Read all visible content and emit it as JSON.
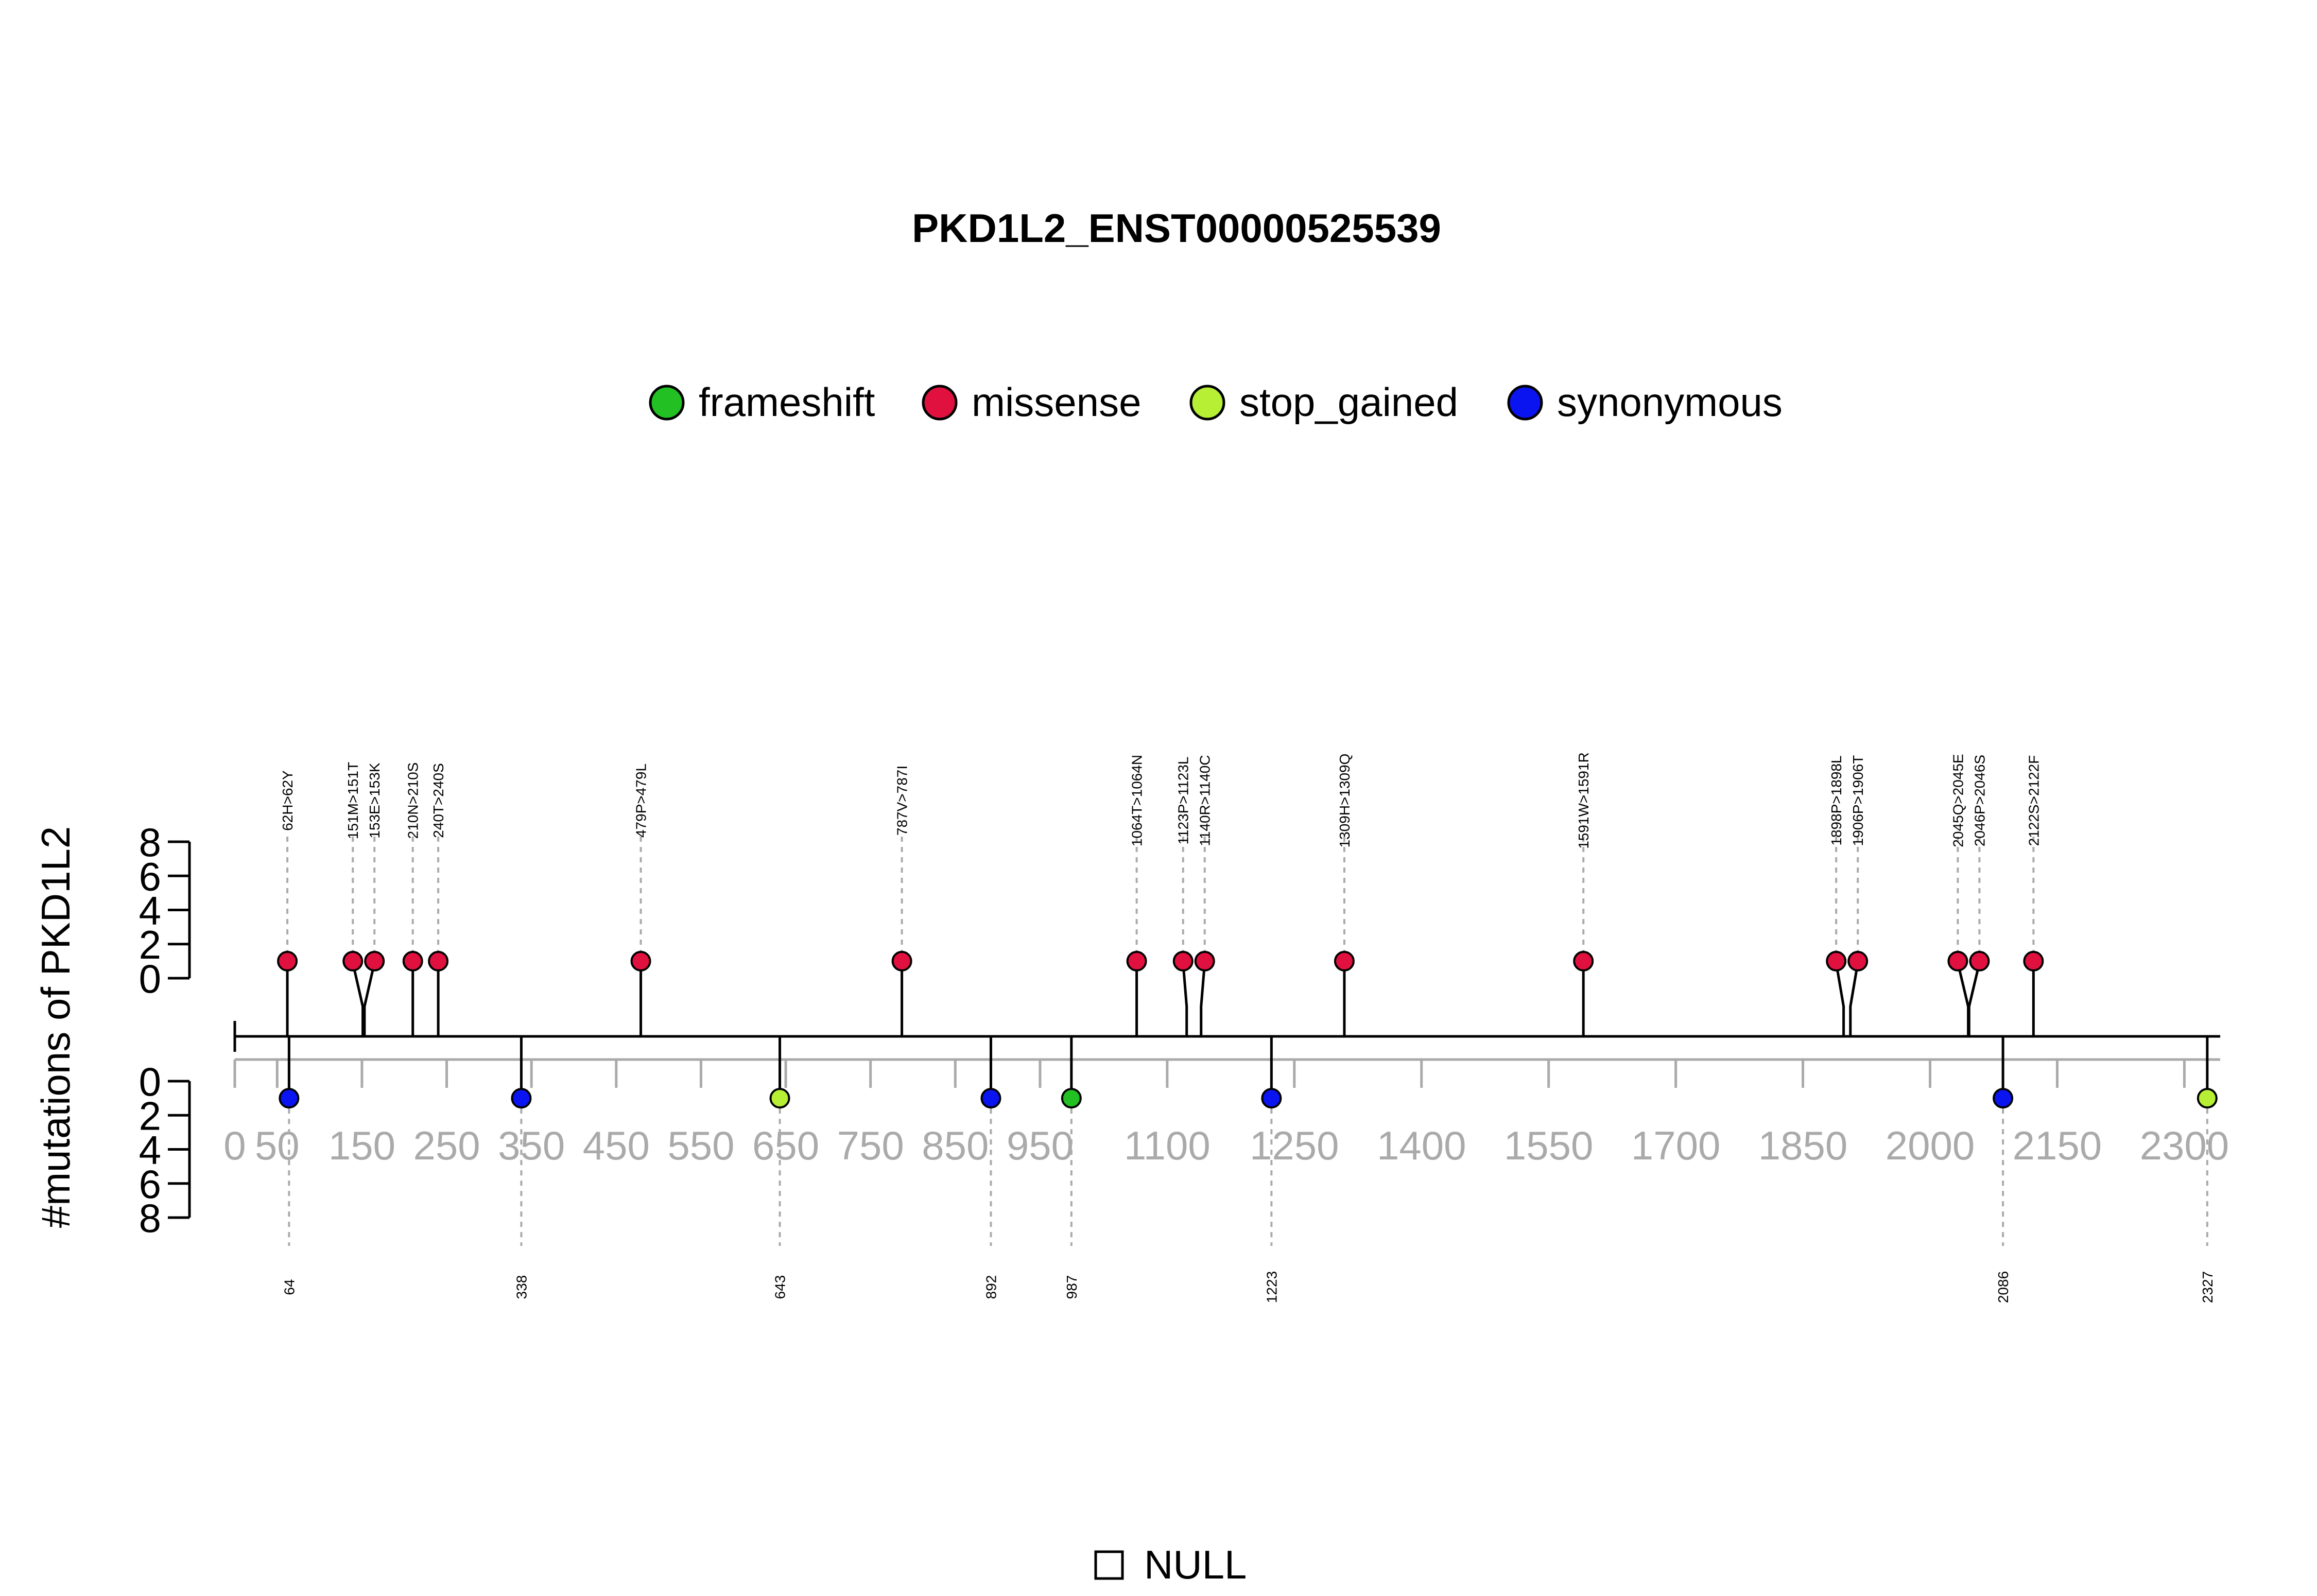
{
  "chart_data": {
    "type": "lollipop",
    "title": "PKD1L2_ENST00000525539",
    "ylabel": "#mutations of PKD1L2",
    "xlim": [
      0,
      2335
    ],
    "x_ticks": [
      0,
      50,
      150,
      250,
      350,
      450,
      550,
      650,
      750,
      850,
      950,
      1100,
      1250,
      1400,
      1550,
      1700,
      1850,
      2000,
      2150,
      2300
    ],
    "y_ticks": [
      0,
      2,
      4,
      6,
      8
    ],
    "ylim": [
      0,
      8
    ],
    "legend": {
      "placement": "top-center",
      "entries": [
        {
          "name": "frameshift",
          "color": "#22c022"
        },
        {
          "name": "missense",
          "color": "#e0103f"
        },
        {
          "name": "stop_gained",
          "color": "#b6ef34"
        },
        {
          "name": "synonymous",
          "color": "#0a14f0"
        }
      ]
    },
    "upper_mutations": [
      {
        "label": "62H>62Y",
        "position": 62,
        "count": 1,
        "type": "missense"
      },
      {
        "label": "151M>151T",
        "position": 151,
        "count": 1,
        "type": "missense"
      },
      {
        "label": "153E>153K",
        "position": 153,
        "count": 1,
        "type": "missense"
      },
      {
        "label": "210N>210S",
        "position": 210,
        "count": 1,
        "type": "missense"
      },
      {
        "label": "240T>240S",
        "position": 240,
        "count": 1,
        "type": "missense"
      },
      {
        "label": "479P>479L",
        "position": 479,
        "count": 1,
        "type": "missense"
      },
      {
        "label": "787V>787I",
        "position": 787,
        "count": 1,
        "type": "missense"
      },
      {
        "label": "1064T>1064N",
        "position": 1064,
        "count": 1,
        "type": "missense"
      },
      {
        "label": "1123P>1123L",
        "position": 1123,
        "count": 1,
        "type": "missense"
      },
      {
        "label": "1140R>1140C",
        "position": 1140,
        "count": 1,
        "type": "missense"
      },
      {
        "label": "1309H>1309Q",
        "position": 1309,
        "count": 1,
        "type": "missense"
      },
      {
        "label": "1591W>1591R",
        "position": 1591,
        "count": 1,
        "type": "missense"
      },
      {
        "label": "1898P>1898L",
        "position": 1898,
        "count": 1,
        "type": "missense"
      },
      {
        "label": "1906P>1906T",
        "position": 1906,
        "count": 1,
        "type": "missense"
      },
      {
        "label": "2045Q>2045E",
        "position": 2045,
        "count": 1,
        "type": "missense"
      },
      {
        "label": "2046P>2046S",
        "position": 2046,
        "count": 1,
        "type": "missense"
      },
      {
        "label": "2122S>2122F",
        "position": 2122,
        "count": 1,
        "type": "missense"
      }
    ],
    "lower_mutations": [
      {
        "label": "64",
        "position": 64,
        "count": 1,
        "type": "synonymous"
      },
      {
        "label": "338",
        "position": 338,
        "count": 1,
        "type": "synonymous"
      },
      {
        "label": "643",
        "position": 643,
        "count": 1,
        "type": "stop_gained"
      },
      {
        "label": "892",
        "position": 892,
        "count": 1,
        "type": "synonymous"
      },
      {
        "label": "987",
        "position": 987,
        "count": 1,
        "type": "frameshift"
      },
      {
        "label": "1223",
        "position": 1223,
        "count": 1,
        "type": "synonymous"
      },
      {
        "label": "2086",
        "position": 2086,
        "count": 1,
        "type": "synonymous"
      },
      {
        "label": "2327",
        "position": 2327,
        "count": 1,
        "type": "stop_gained"
      }
    ],
    "domain_legend": {
      "label": "NULL"
    }
  }
}
